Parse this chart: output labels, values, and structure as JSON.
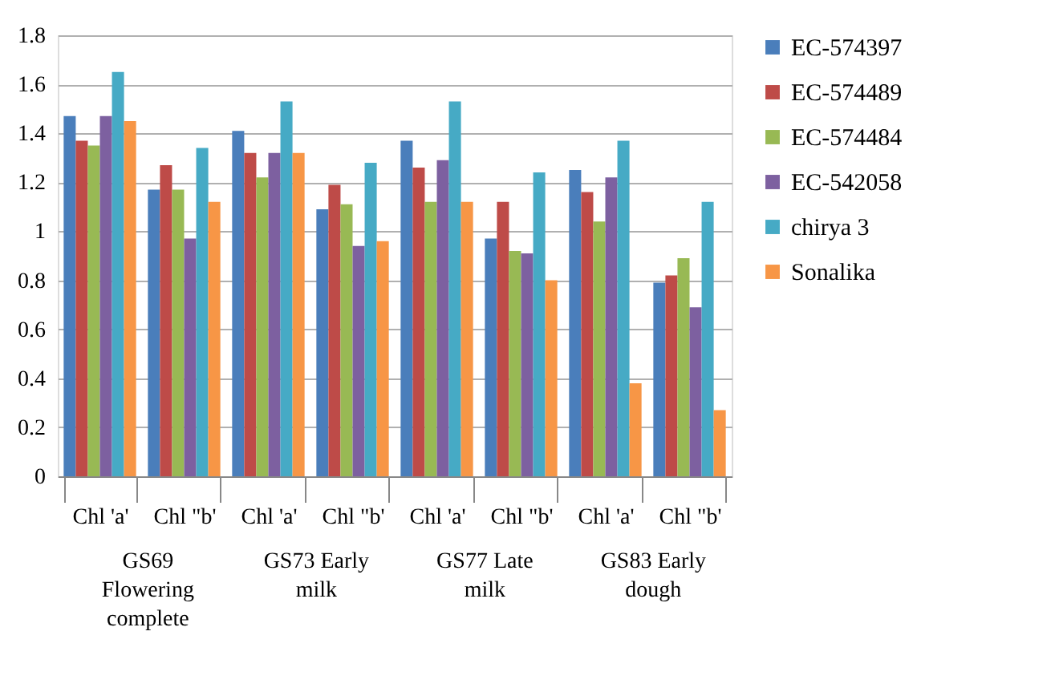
{
  "chart_data": {
    "type": "bar",
    "categories": [
      "Chl 'a'",
      "Chl \"b'",
      "Chl 'a'",
      "Chl \"b'",
      "Chl 'a'",
      "Chl \"b'",
      "Chl 'a'",
      "Chl \"b'"
    ],
    "series": [
      {
        "name": "EC-574397",
        "color": "#4a7ebb",
        "values": [
          1.47,
          1.17,
          1.41,
          1.09,
          1.37,
          0.97,
          1.25,
          0.79
        ]
      },
      {
        "name": "EC-574489",
        "color": "#be4b48",
        "values": [
          1.37,
          1.27,
          1.32,
          1.19,
          1.26,
          1.12,
          1.16,
          0.82
        ]
      },
      {
        "name": "EC-574484",
        "color": "#98b954",
        "values": [
          1.35,
          1.17,
          1.22,
          1.11,
          1.12,
          0.92,
          1.04,
          0.89
        ]
      },
      {
        "name": "EC-542058",
        "color": "#7d60a0",
        "values": [
          1.47,
          0.97,
          1.32,
          0.94,
          1.29,
          0.91,
          1.22,
          0.69
        ]
      },
      {
        "name": "chirya 3",
        "color": "#46aac5",
        "values": [
          1.65,
          1.34,
          1.53,
          1.28,
          1.53,
          1.24,
          1.37,
          1.12
        ]
      },
      {
        "name": "Sonalika",
        "color": "#f79646",
        "values": [
          1.45,
          1.12,
          1.32,
          0.96,
          1.12,
          0.8,
          0.38,
          0.27
        ]
      }
    ],
    "annotations": [
      "GS69 Flowering complete",
      "GS73 Early milk",
      "GS77 Late milk",
      "GS83 Early dough"
    ],
    "ylim": [
      0,
      1.8
    ],
    "yticks": [
      0,
      0.2,
      0.4,
      0.6,
      0.8,
      1,
      1.2,
      1.4,
      1.6,
      1.8
    ],
    "grid": "y",
    "legend": "right"
  }
}
